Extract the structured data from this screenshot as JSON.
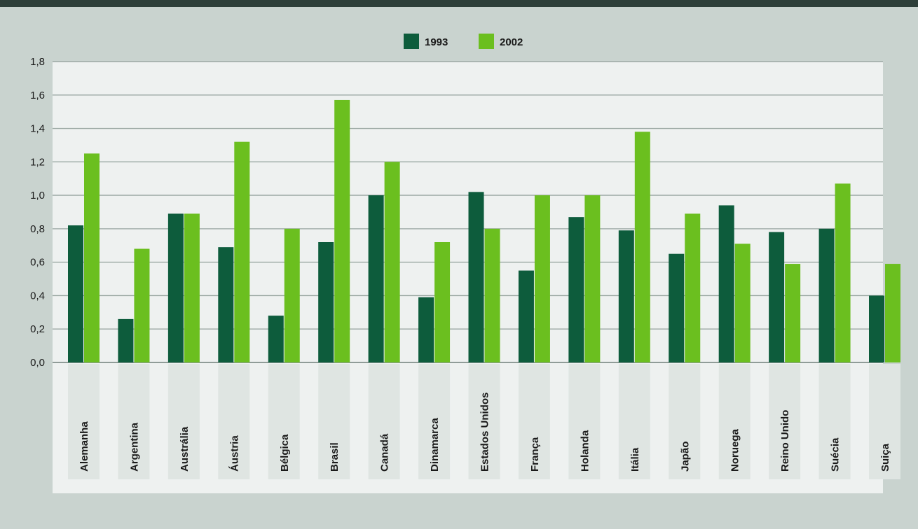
{
  "chart_data": {
    "type": "bar",
    "categories": [
      "Alemanha",
      "Argentina",
      "Austrália",
      "Áustria",
      "Bélgica",
      "Brasil",
      "Canadá",
      "Dinamarca",
      "Estados Unidos",
      "França",
      "Holanda",
      "Itália",
      "Japão",
      "Noruega",
      "Reino Unido",
      "Suécia",
      "Suiça"
    ],
    "series": [
      {
        "name": "1993",
        "color": "#0d5c3c",
        "values": [
          0.82,
          0.26,
          0.89,
          0.69,
          0.28,
          0.72,
          1.0,
          0.39,
          1.02,
          0.55,
          0.87,
          0.79,
          0.65,
          0.94,
          0.78,
          0.8,
          0.4
        ]
      },
      {
        "name": "2002",
        "color": "#6bbf1f",
        "values": [
          1.25,
          0.68,
          0.89,
          1.32,
          0.8,
          1.57,
          1.2,
          0.72,
          0.8,
          1.0,
          1.0,
          1.38,
          0.89,
          0.71,
          0.59,
          1.07,
          0.59
        ]
      }
    ],
    "y_ticks": [
      "0,0",
      "0,2",
      "0,4",
      "0,6",
      "0,8",
      "1,0",
      "1,2",
      "1,4",
      "1,6",
      "1,8"
    ],
    "ylim": [
      0,
      1.8
    ],
    "grid": true,
    "legend_position": "top-center",
    "title": "",
    "xlabel": "",
    "ylabel": ""
  },
  "colors": {
    "background": "#c9d3cf",
    "plot_area": "#eef1f0",
    "label_box": "#dfe5e2",
    "gridline": "#9aa7a2"
  }
}
